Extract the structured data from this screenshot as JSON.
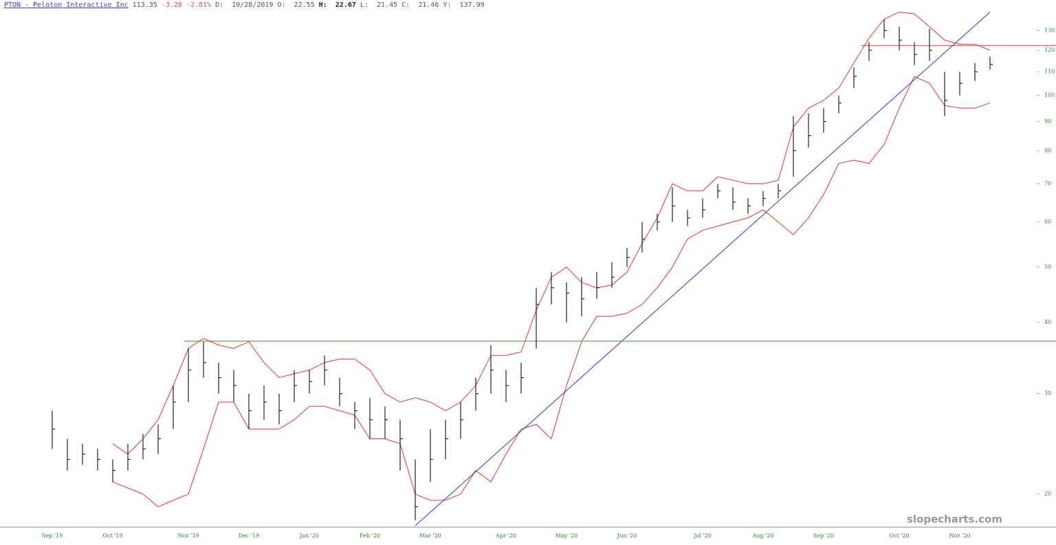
{
  "header": {
    "symbol": "PTON - Peloton Interactive Inc",
    "last": "113.35",
    "change": "-3.28",
    "change_pct": "-2.81%",
    "fields": [
      {
        "label": "D:",
        "value": "10/28/2019"
      },
      {
        "label": "O:",
        "value": "22.55"
      },
      {
        "label": "H:",
        "value": "22.67"
      },
      {
        "label": "L:",
        "value": "21.45"
      },
      {
        "label": "C:",
        "value": "21.46"
      },
      {
        "label": "Y:",
        "value": "137.99"
      }
    ]
  },
  "chart_data": {
    "type": "ohlc",
    "log_scale": true,
    "watermark": "slopecharts.com",
    "categories": [
      null,
      null,
      null,
      null,
      "Oct '19",
      null,
      null,
      null,
      null,
      "Nov '19",
      null,
      null,
      null,
      "Dec '19",
      null,
      null,
      null,
      "Jan '20",
      null,
      null,
      null,
      "Feb '20",
      null,
      null,
      null,
      "Mar '20",
      null,
      null,
      null,
      null,
      "Apr '20",
      null,
      null,
      null,
      "May '20",
      null,
      null,
      null,
      "Jun '20",
      null,
      null,
      null,
      null,
      "Jul '20",
      null,
      null,
      null,
      "Aug '20",
      null,
      null,
      null,
      "Sep '20",
      null,
      null,
      null,
      null,
      "Oct '20",
      null,
      null,
      null,
      "Nov '20",
      null,
      null
    ],
    "first_label": "Sep '19",
    "high": [
      28,
      25,
      24.5,
      24,
      23,
      24.5,
      25.5,
      26.5,
      31,
      36,
      37,
      34,
      33,
      30,
      31,
      30,
      33,
      33,
      35,
      32,
      29,
      29.5,
      28.5,
      27,
      23,
      26,
      27,
      29,
      32,
      36.5,
      33,
      34,
      46,
      49,
      47,
      48,
      49,
      51,
      54,
      60,
      62,
      69,
      63,
      66,
      70,
      69,
      66,
      68,
      70,
      92,
      93,
      95,
      100,
      112,
      124,
      136,
      132,
      124,
      131,
      110,
      110,
      114,
      117
    ],
    "low": [
      24,
      22,
      22.5,
      22,
      21,
      22,
      23,
      23.5,
      26,
      29,
      32,
      30,
      29,
      26,
      27,
      26.5,
      29,
      30,
      31,
      28.5,
      26,
      25,
      25,
      22,
      18,
      21,
      23,
      25,
      28,
      30,
      29,
      30,
      36,
      43,
      40,
      41,
      44,
      46,
      50,
      53,
      58,
      60,
      59,
      61,
      66,
      63,
      62,
      64,
      66,
      72,
      81,
      86,
      93,
      103,
      115,
      126,
      120,
      113,
      115,
      92,
      100,
      106,
      111
    ],
    "close": [
      26,
      23,
      23.5,
      23,
      22,
      23,
      24,
      25,
      29,
      33,
      34,
      32,
      31,
      28,
      29,
      28,
      31,
      31.5,
      33,
      30,
      28,
      27,
      27,
      25,
      19,
      23,
      25,
      27,
      30,
      33,
      31,
      32,
      43,
      46,
      45,
      44,
      46,
      48,
      52,
      56,
      60,
      64,
      61,
      63,
      68,
      65,
      64,
      66,
      68,
      80,
      85,
      90,
      97,
      108,
      120,
      130,
      125,
      118,
      120,
      98,
      105,
      110,
      113.35
    ],
    "bar_color": "#222222",
    "bands": [
      {
        "color": "#e83030",
        "values": [
          null,
          null,
          null,
          null,
          24.5,
          23.5,
          25,
          27,
          31,
          36,
          37.5,
          36.5,
          36,
          37,
          34,
          32,
          32.5,
          33,
          34,
          34.5,
          34.5,
          33,
          30,
          29,
          29.5,
          29,
          28,
          29,
          31,
          35,
          35,
          35.5,
          42,
          48,
          50,
          47,
          46,
          46.5,
          49,
          55,
          61,
          70,
          68,
          68,
          72,
          71,
          70,
          70,
          71,
          88,
          95,
          98,
          103,
          114,
          126,
          136,
          140,
          139,
          132,
          125,
          123,
          123,
          120
        ]
      },
      {
        "color": "#e83030",
        "values": [
          null,
          null,
          null,
          null,
          21,
          20.5,
          20,
          19,
          19.5,
          20,
          24,
          29,
          29,
          26,
          26,
          26,
          27,
          28.5,
          28.5,
          28,
          27.5,
          25,
          25,
          24.5,
          20,
          19.5,
          19.5,
          20,
          22,
          21,
          23.5,
          26,
          26.5,
          25,
          31,
          37,
          41,
          41,
          41.5,
          43,
          46,
          50,
          56,
          58,
          59,
          60,
          61,
          63,
          60,
          57,
          61,
          67,
          76,
          77,
          76,
          82,
          95,
          108,
          105,
          96,
          95,
          95,
          97
        ]
      }
    ],
    "trendline": {
      "color": "#3030e0",
      "values": [
        null,
        null,
        null,
        null,
        null,
        null,
        null,
        null,
        null,
        null,
        null,
        null,
        null,
        null,
        null,
        null,
        null,
        null,
        null,
        null,
        null,
        null,
        null,
        null,
        17.6,
        18.59,
        19.63,
        20.73,
        21.89,
        23.12,
        24.42,
        25.79,
        27.23,
        28.76,
        30.37,
        32.08,
        33.88,
        35.78,
        37.78,
        39.9,
        42.14,
        44.5,
        47.0,
        49.64,
        52.42,
        55.36,
        58.47,
        61.75,
        65.21,
        68.87,
        72.73,
        76.81,
        81.12,
        85.67,
        90.47,
        95.55,
        100.9,
        106.6,
        112.5,
        118.9,
        125.5,
        132.6,
        140.0
      ]
    },
    "levels": [
      {
        "value": 37.1,
        "color": "#2a9d2a"
      },
      {
        "value": 122.3,
        "color": "#e83030"
      }
    ],
    "ylim": [
      17.5,
      147
    ],
    "yticks": [
      20,
      30,
      40,
      50,
      60,
      70,
      80,
      90,
      100,
      110,
      120,
      130
    ],
    "tick_color": "#2a8a2a"
  }
}
